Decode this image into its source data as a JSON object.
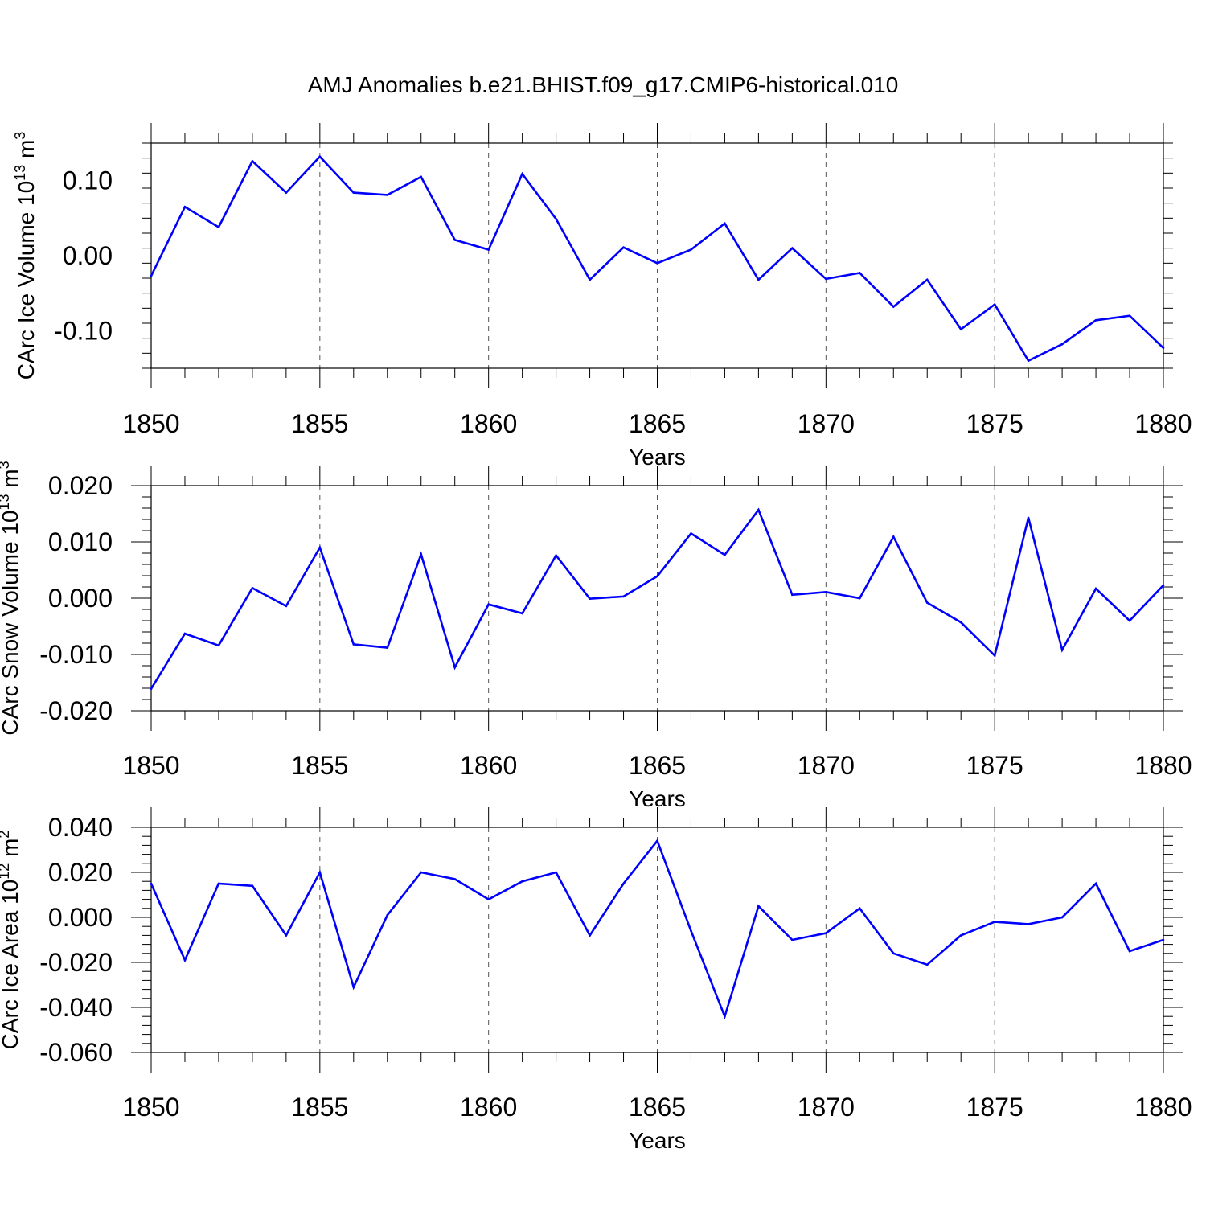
{
  "title": "AMJ Anomalies b.e21.BHIST.f09_g17.CMIP6-historical.010",
  "colors": {
    "line": "#0000ff",
    "frame": "#000000",
    "grid": "#555555"
  },
  "chart_data": [
    {
      "type": "line",
      "ylabel": {
        "main": "CArc Ice Volume 10",
        "exp": "13",
        "unit": " m",
        "unit_exp": "3"
      },
      "xlabel": "Years",
      "xlim": [
        1850,
        1880
      ],
      "ylim": [
        -0.15,
        0.15
      ],
      "x_ticks": [
        "1850",
        "1855",
        "1860",
        "1865",
        "1870",
        "1875",
        "1880"
      ],
      "y_ticks": [
        {
          "value": 0.1,
          "label": "0.10"
        },
        {
          "value": 0.0,
          "label": "0.00"
        },
        {
          "value": -0.1,
          "label": "-0.10"
        }
      ],
      "x": [
        1850,
        1851,
        1852,
        1853,
        1854,
        1855,
        1856,
        1857,
        1858,
        1859,
        1860,
        1861,
        1862,
        1863,
        1864,
        1865,
        1866,
        1867,
        1868,
        1869,
        1870,
        1871,
        1872,
        1873,
        1874,
        1875,
        1876,
        1877,
        1878,
        1879,
        1880
      ],
      "values": [
        -0.027,
        0.065,
        0.038,
        0.126,
        0.084,
        0.132,
        0.084,
        0.081,
        0.105,
        0.021,
        0.008,
        0.109,
        0.049,
        -0.032,
        0.011,
        -0.01,
        0.008,
        0.043,
        -0.032,
        0.01,
        -0.031,
        -0.023,
        -0.068,
        -0.032,
        -0.098,
        -0.065,
        -0.14,
        -0.118,
        -0.086,
        -0.08,
        -0.123
      ],
      "grid": "vertical dashed at labeled years"
    },
    {
      "type": "line",
      "ylabel": {
        "main": "CArc Snow Volume 10",
        "exp": "13",
        "unit": " m",
        "unit_exp": "3"
      },
      "xlabel": "Years",
      "xlim": [
        1850,
        1880
      ],
      "ylim": [
        -0.02,
        0.02
      ],
      "x_ticks": [
        "1850",
        "1855",
        "1860",
        "1865",
        "1870",
        "1875",
        "1880"
      ],
      "y_ticks": [
        {
          "value": 0.02,
          "label": "0.020"
        },
        {
          "value": 0.01,
          "label": "0.010"
        },
        {
          "value": 0.0,
          "label": "0.000"
        },
        {
          "value": -0.01,
          "label": "-0.010"
        },
        {
          "value": -0.02,
          "label": "-0.020"
        }
      ],
      "x": [
        1850,
        1851,
        1852,
        1853,
        1854,
        1855,
        1856,
        1857,
        1858,
        1859,
        1860,
        1861,
        1862,
        1863,
        1864,
        1865,
        1866,
        1867,
        1868,
        1869,
        1870,
        1871,
        1872,
        1873,
        1874,
        1875,
        1876,
        1877,
        1878,
        1879,
        1880
      ],
      "values": [
        -0.0161,
        -0.0063,
        -0.0084,
        0.0018,
        -0.0014,
        0.009,
        -0.0082,
        -0.0088,
        0.0078,
        -0.0123,
        -0.0011,
        -0.0027,
        0.0076,
        -0.0001,
        0.0003,
        0.0039,
        0.0115,
        0.0077,
        0.0157,
        0.0006,
        0.0011,
        0.0,
        0.0109,
        -0.0008,
        -0.0043,
        -0.0102,
        0.0143,
        -0.0092,
        0.0017,
        -0.004,
        0.0023
      ],
      "grid": "vertical dashed at labeled years"
    },
    {
      "type": "line",
      "ylabel": {
        "main": "CArc Ice Area 10",
        "exp": "12",
        "unit": " m",
        "unit_exp": "2"
      },
      "xlabel": "Years",
      "xlim": [
        1850,
        1880
      ],
      "ylim": [
        -0.06,
        0.04
      ],
      "x_ticks": [
        "1850",
        "1855",
        "1860",
        "1865",
        "1870",
        "1875",
        "1880"
      ],
      "y_ticks": [
        {
          "value": 0.04,
          "label": "0.040"
        },
        {
          "value": 0.02,
          "label": "0.020"
        },
        {
          "value": 0.0,
          "label": "0.000"
        },
        {
          "value": -0.02,
          "label": "-0.020"
        },
        {
          "value": -0.04,
          "label": "-0.040"
        },
        {
          "value": -0.06,
          "label": "-0.060"
        }
      ],
      "x": [
        1850,
        1851,
        1852,
        1853,
        1854,
        1855,
        1856,
        1857,
        1858,
        1859,
        1860,
        1861,
        1862,
        1863,
        1864,
        1865,
        1866,
        1867,
        1868,
        1869,
        1870,
        1871,
        1872,
        1873,
        1874,
        1875,
        1876,
        1877,
        1878,
        1879,
        1880
      ],
      "values": [
        0.015,
        -0.019,
        0.015,
        0.014,
        -0.008,
        0.02,
        -0.031,
        0.001,
        0.02,
        0.017,
        0.008,
        0.016,
        0.02,
        -0.008,
        0.015,
        0.034,
        -0.006,
        -0.044,
        0.005,
        -0.01,
        -0.007,
        0.004,
        -0.016,
        -0.021,
        -0.008,
        -0.002,
        -0.003,
        0.0,
        0.015,
        -0.015,
        -0.01
      ],
      "grid": "vertical dashed at labeled years"
    }
  ]
}
